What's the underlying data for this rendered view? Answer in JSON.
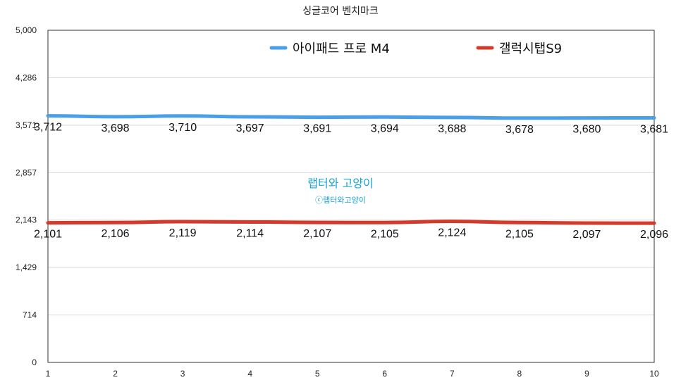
{
  "chart_data": {
    "type": "line",
    "title": "싱글코어 벤치마크",
    "x": [
      1,
      2,
      3,
      4,
      5,
      6,
      7,
      8,
      9,
      10
    ],
    "x_tick_labels": [
      "1",
      "2",
      "3",
      "4",
      "5",
      "6",
      "7",
      "8",
      "9",
      "10"
    ],
    "ylim": [
      0,
      5000
    ],
    "y_ticks": [
      0,
      714,
      1429,
      2143,
      2857,
      3571,
      4286,
      5000
    ],
    "y_tick_labels": [
      "0",
      "714",
      "1,429",
      "2,143",
      "2,857",
      "3,571",
      "4,286",
      "5,000"
    ],
    "grid": true,
    "legend_position": "top",
    "series": [
      {
        "name": "아이패드 프로 M4",
        "color": "#4a9fe8",
        "values": [
          3712,
          3698,
          3710,
          3697,
          3691,
          3694,
          3688,
          3678,
          3680,
          3681
        ],
        "labels": [
          "3,712",
          "3,698",
          "3,710",
          "3,697",
          "3,691",
          "3,694",
          "3,688",
          "3,678",
          "3,680",
          "3,681"
        ]
      },
      {
        "name": "갤럭시탭S9",
        "color": "#d23b2c",
        "values": [
          2101,
          2106,
          2119,
          2114,
          2107,
          2105,
          2124,
          2105,
          2097,
          2096
        ],
        "labels": [
          "2,101",
          "2,106",
          "2,119",
          "2,114",
          "2,107",
          "2,105",
          "2,124",
          "2,105",
          "2,097",
          "2,096"
        ]
      }
    ]
  },
  "watermark": {
    "main": "랩터와 고양이",
    "sub": "ⓒ랩터와고양이",
    "color": "#1aa3d6"
  }
}
